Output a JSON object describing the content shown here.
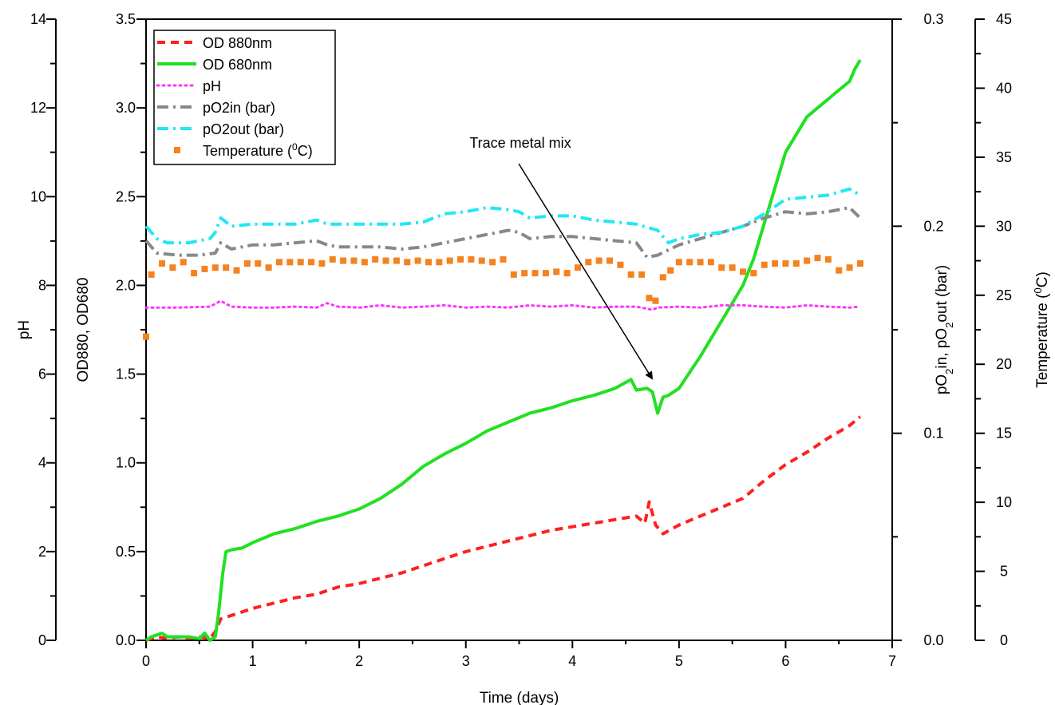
{
  "chart_data": {
    "type": "line",
    "xlabel": "Time (days)",
    "xlim": [
      0,
      7
    ],
    "x_ticks": [
      "0",
      "1",
      "2",
      "3",
      "4",
      "5",
      "6",
      "7"
    ],
    "axes": {
      "ph": {
        "label": "pH",
        "lim": [
          0,
          14
        ],
        "ticks": [
          "0",
          "2",
          "4",
          "6",
          "8",
          "10",
          "12",
          "14"
        ]
      },
      "od": {
        "label": "OD880, OD680",
        "lim": [
          0,
          3.5
        ],
        "ticks": [
          "0.0",
          "0.5",
          "1.0",
          "1.5",
          "2.0",
          "2.5",
          "3.0",
          "3.5"
        ]
      },
      "po2": {
        "label_parts": [
          "pO",
          "2",
          "in, pO",
          "2",
          "out (bar)"
        ],
        "lim": [
          0,
          0.3
        ],
        "ticks": [
          "0.0",
          "0.1",
          "0.2",
          "0.3"
        ]
      },
      "temp": {
        "label_parts": [
          "Temperature (",
          "0",
          "C)"
        ],
        "lim": [
          0,
          45
        ],
        "ticks": [
          "0",
          "5",
          "10",
          "15",
          "20",
          "25",
          "30",
          "35",
          "40",
          "45"
        ]
      }
    },
    "legend_position": "top-left",
    "series": [
      {
        "name": "OD 880nm",
        "axis": "od",
        "style": "dashed",
        "color": "#ff2020",
        "x": [
          0,
          0.1,
          0.2,
          0.3,
          0.4,
          0.5,
          0.6,
          0.65,
          0.7,
          0.8,
          1.0,
          1.2,
          1.4,
          1.6,
          1.8,
          2.0,
          2.2,
          2.4,
          2.6,
          2.8,
          3.0,
          3.2,
          3.4,
          3.6,
          3.8,
          4.0,
          4.2,
          4.4,
          4.6,
          4.68,
          4.72,
          4.78,
          4.85,
          5.0,
          5.2,
          5.4,
          5.6,
          5.8,
          6.0,
          6.2,
          6.4,
          6.6,
          6.7
        ],
        "y": [
          0.0,
          0.02,
          0.01,
          0.02,
          0.01,
          0.02,
          0.01,
          0.05,
          0.12,
          0.14,
          0.18,
          0.21,
          0.24,
          0.26,
          0.3,
          0.32,
          0.35,
          0.38,
          0.42,
          0.46,
          0.5,
          0.53,
          0.56,
          0.59,
          0.62,
          0.64,
          0.66,
          0.68,
          0.7,
          0.66,
          0.78,
          0.65,
          0.6,
          0.65,
          0.7,
          0.75,
          0.8,
          0.9,
          0.99,
          1.06,
          1.14,
          1.21,
          1.26
        ]
      },
      {
        "name": "OD 680nm",
        "axis": "od",
        "style": "solid",
        "color": "#22e022",
        "x": [
          0,
          0.05,
          0.1,
          0.15,
          0.2,
          0.3,
          0.4,
          0.5,
          0.55,
          0.6,
          0.65,
          0.68,
          0.72,
          0.75,
          0.8,
          0.9,
          1.0,
          1.2,
          1.4,
          1.6,
          1.8,
          2.0,
          2.2,
          2.4,
          2.6,
          2.8,
          3.0,
          3.2,
          3.4,
          3.6,
          3.8,
          4.0,
          4.2,
          4.4,
          4.55,
          4.6,
          4.7,
          4.75,
          4.8,
          4.85,
          4.9,
          5.0,
          5.2,
          5.4,
          5.6,
          5.7,
          5.8,
          5.9,
          6.0,
          6.2,
          6.4,
          6.5,
          6.6,
          6.65,
          6.7
        ],
        "y": [
          0.0,
          0.02,
          0.03,
          0.04,
          0.02,
          0.02,
          0.02,
          0.01,
          0.04,
          0.0,
          0.02,
          0.15,
          0.38,
          0.5,
          0.51,
          0.52,
          0.55,
          0.6,
          0.63,
          0.67,
          0.7,
          0.74,
          0.8,
          0.88,
          0.98,
          1.05,
          1.11,
          1.18,
          1.23,
          1.28,
          1.31,
          1.35,
          1.38,
          1.42,
          1.47,
          1.41,
          1.42,
          1.4,
          1.28,
          1.37,
          1.38,
          1.42,
          1.6,
          1.8,
          2.0,
          2.15,
          2.35,
          2.55,
          2.75,
          2.95,
          3.05,
          3.1,
          3.15,
          3.22,
          3.27
        ]
      },
      {
        "name": "pH",
        "axis": "ph",
        "style": "dotted",
        "color": "#ff33ff",
        "x": [
          0,
          0.3,
          0.6,
          0.7,
          0.8,
          1.0,
          1.2,
          1.4,
          1.6,
          1.7,
          1.8,
          2.0,
          2.2,
          2.4,
          2.6,
          2.8,
          3.0,
          3.2,
          3.4,
          3.6,
          3.8,
          4.0,
          4.2,
          4.4,
          4.6,
          4.75,
          4.8,
          5.0,
          5.2,
          5.4,
          5.6,
          5.8,
          6.0,
          6.2,
          6.4,
          6.6,
          6.7
        ],
        "y": [
          7.5,
          7.5,
          7.52,
          7.65,
          7.52,
          7.5,
          7.5,
          7.52,
          7.5,
          7.6,
          7.52,
          7.5,
          7.55,
          7.5,
          7.52,
          7.55,
          7.5,
          7.52,
          7.5,
          7.55,
          7.52,
          7.55,
          7.5,
          7.52,
          7.52,
          7.45,
          7.5,
          7.52,
          7.5,
          7.55,
          7.55,
          7.52,
          7.5,
          7.55,
          7.52,
          7.5,
          7.52
        ]
      },
      {
        "name": "pO2in (bar)",
        "axis": "po2",
        "style": "dashdot",
        "color": "#888888",
        "x": [
          0,
          0.1,
          0.3,
          0.5,
          0.65,
          0.7,
          0.8,
          1.0,
          1.2,
          1.4,
          1.6,
          1.7,
          1.8,
          2.0,
          2.2,
          2.4,
          2.6,
          2.8,
          3.0,
          3.2,
          3.4,
          3.5,
          3.6,
          3.8,
          4.0,
          4.2,
          4.4,
          4.6,
          4.7,
          4.8,
          5.0,
          5.2,
          5.4,
          5.6,
          5.8,
          6.0,
          6.2,
          6.4,
          6.6,
          6.7
        ],
        "y": [
          0.193,
          0.187,
          0.186,
          0.186,
          0.187,
          0.192,
          0.189,
          0.191,
          0.191,
          0.192,
          0.193,
          0.191,
          0.19,
          0.19,
          0.19,
          0.189,
          0.19,
          0.192,
          0.194,
          0.196,
          0.198,
          0.197,
          0.194,
          0.195,
          0.195,
          0.194,
          0.193,
          0.192,
          0.185,
          0.186,
          0.191,
          0.194,
          0.197,
          0.2,
          0.204,
          0.207,
          0.206,
          0.207,
          0.209,
          0.204
        ]
      },
      {
        "name": "pO2out (bar)",
        "axis": "po2",
        "style": "dashdot",
        "color": "#22e8f2",
        "x": [
          0,
          0.1,
          0.2,
          0.4,
          0.6,
          0.65,
          0.7,
          0.8,
          1.0,
          1.2,
          1.4,
          1.6,
          1.7,
          1.8,
          2.0,
          2.2,
          2.4,
          2.6,
          2.8,
          3.0,
          3.2,
          3.4,
          3.5,
          3.6,
          3.8,
          4.0,
          4.2,
          4.4,
          4.6,
          4.8,
          4.9,
          5.0,
          5.2,
          5.4,
          5.6,
          5.8,
          6.0,
          6.2,
          6.4,
          6.6,
          6.7
        ],
        "y": [
          0.2,
          0.194,
          0.192,
          0.192,
          0.194,
          0.197,
          0.204,
          0.2,
          0.201,
          0.201,
          0.201,
          0.203,
          0.201,
          0.201,
          0.201,
          0.201,
          0.201,
          0.202,
          0.206,
          0.207,
          0.209,
          0.208,
          0.207,
          0.204,
          0.205,
          0.205,
          0.203,
          0.202,
          0.201,
          0.198,
          0.192,
          0.194,
          0.196,
          0.197,
          0.2,
          0.206,
          0.213,
          0.214,
          0.215,
          0.218,
          0.215
        ]
      },
      {
        "name": "Temperature (0C)",
        "axis": "temp",
        "style": "square-markers",
        "color": "#f5821f",
        "name_parts": [
          "Temperature (",
          "0",
          "C)"
        ],
        "x": [
          0,
          0.05,
          0.15,
          0.25,
          0.35,
          0.45,
          0.55,
          0.65,
          0.75,
          0.85,
          0.95,
          1.05,
          1.15,
          1.25,
          1.35,
          1.45,
          1.55,
          1.65,
          1.75,
          1.85,
          1.95,
          2.05,
          2.15,
          2.25,
          2.35,
          2.45,
          2.55,
          2.65,
          2.75,
          2.85,
          2.95,
          3.05,
          3.15,
          3.25,
          3.35,
          3.45,
          3.55,
          3.65,
          3.75,
          3.85,
          3.95,
          4.05,
          4.15,
          4.25,
          4.35,
          4.45,
          4.55,
          4.65,
          4.72,
          4.78,
          4.85,
          4.92,
          5.0,
          5.1,
          5.2,
          5.3,
          5.4,
          5.5,
          5.6,
          5.7,
          5.8,
          5.9,
          6.0,
          6.1,
          6.2,
          6.3,
          6.4,
          6.5,
          6.6,
          6.7
        ],
        "y": [
          22.0,
          26.5,
          27.3,
          27.0,
          27.4,
          26.6,
          26.9,
          27.0,
          27.0,
          26.8,
          27.3,
          27.3,
          27.0,
          27.4,
          27.4,
          27.4,
          27.4,
          27.3,
          27.6,
          27.5,
          27.5,
          27.4,
          27.6,
          27.5,
          27.5,
          27.4,
          27.5,
          27.4,
          27.4,
          27.5,
          27.6,
          27.6,
          27.5,
          27.4,
          27.6,
          26.5,
          26.6,
          26.6,
          26.6,
          26.7,
          26.6,
          27.0,
          27.4,
          27.5,
          27.5,
          27.2,
          26.5,
          26.5,
          24.8,
          24.6,
          26.3,
          26.8,
          27.4,
          27.4,
          27.4,
          27.4,
          27.0,
          27.0,
          26.7,
          26.6,
          27.2,
          27.3,
          27.3,
          27.3,
          27.5,
          27.7,
          27.6,
          26.8,
          27.0,
          27.3
        ]
      }
    ],
    "annotations": [
      {
        "text": "Trace metal mix",
        "arrow_to": {
          "x": 4.75,
          "y": 1.45
        }
      }
    ]
  }
}
